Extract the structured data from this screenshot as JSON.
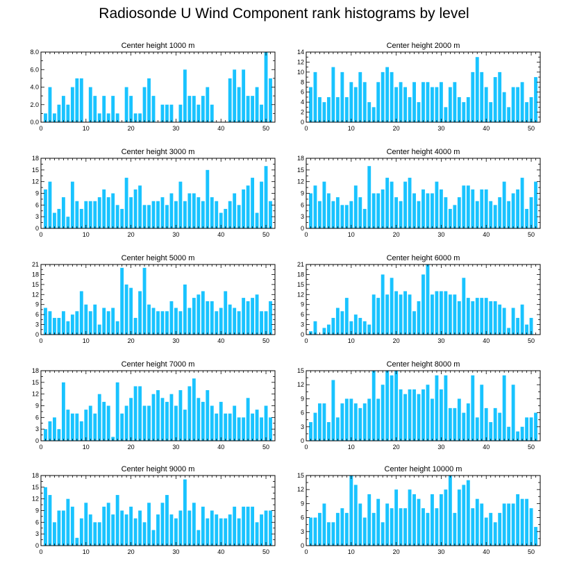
{
  "title": "Radiosonde U Wind Component rank histograms by level",
  "bar_color": "#19C3FF",
  "chart_data": [
    {
      "type": "bar",
      "title": "Center height 1000 m",
      "x": [
        1,
        2,
        3,
        4,
        5,
        6,
        7,
        8,
        9,
        10,
        11,
        12,
        13,
        14,
        15,
        16,
        17,
        18,
        19,
        20,
        21,
        22,
        23,
        24,
        25,
        26,
        27,
        28,
        29,
        30,
        31,
        32,
        33,
        34,
        35,
        36,
        37,
        38,
        39,
        40,
        41,
        42,
        43,
        44,
        45,
        46,
        47,
        48,
        49,
        50,
        51
      ],
      "values": [
        1,
        4,
        1,
        2,
        3,
        2,
        4,
        5,
        5,
        0,
        4,
        3,
        1,
        3,
        1,
        3,
        1,
        0,
        4,
        3,
        1,
        1,
        4,
        5,
        3,
        0,
        2,
        2,
        2,
        0,
        2,
        6,
        3,
        3,
        2,
        3,
        4,
        2,
        0,
        0,
        0,
        5,
        6,
        4,
        6,
        3,
        3,
        4,
        2,
        8,
        5
      ],
      "xlim": [
        0,
        52
      ],
      "ylim": [
        0,
        8
      ],
      "yticks": [
        "0.0",
        "2.0",
        "4.0",
        "6.0",
        "8.0"
      ],
      "xticks": [
        "0",
        "10",
        "20",
        "30",
        "40",
        "50"
      ]
    },
    {
      "type": "bar",
      "title": "Center height 2000 m",
      "x": [
        1,
        2,
        3,
        4,
        5,
        6,
        7,
        8,
        9,
        10,
        11,
        12,
        13,
        14,
        15,
        16,
        17,
        18,
        19,
        20,
        21,
        22,
        23,
        24,
        25,
        26,
        27,
        28,
        29,
        30,
        31,
        32,
        33,
        34,
        35,
        36,
        37,
        38,
        39,
        40,
        41,
        42,
        43,
        44,
        45,
        46,
        47,
        48,
        49,
        50,
        51
      ],
      "values": [
        7,
        10,
        5,
        4,
        5,
        11,
        5,
        10,
        5,
        8,
        7,
        10,
        8,
        4,
        3,
        8,
        10,
        11,
        10,
        7,
        8,
        7,
        5,
        8,
        4,
        8,
        8,
        7,
        7,
        8,
        3,
        7,
        8,
        5,
        4,
        5,
        10,
        13,
        10,
        7,
        4,
        9,
        10,
        6,
        3,
        7,
        7,
        8,
        4,
        5,
        9
      ],
      "xlim": [
        0,
        52
      ],
      "ylim": [
        0,
        14
      ],
      "yticks": [
        "0",
        "2",
        "4",
        "6",
        "8",
        "10",
        "12",
        "14"
      ],
      "xticks": [
        "0",
        "10",
        "20",
        "30",
        "40",
        "50"
      ]
    },
    {
      "type": "bar",
      "title": "Center height 3000 m",
      "x": [
        1,
        2,
        3,
        4,
        5,
        6,
        7,
        8,
        9,
        10,
        11,
        12,
        13,
        14,
        15,
        16,
        17,
        18,
        19,
        20,
        21,
        22,
        23,
        24,
        25,
        26,
        27,
        28,
        29,
        30,
        31,
        32,
        33,
        34,
        35,
        36,
        37,
        38,
        39,
        40,
        41,
        42,
        43,
        44,
        45,
        46,
        47,
        48,
        49,
        50,
        51
      ],
      "values": [
        10,
        12,
        4,
        5,
        8,
        3,
        12,
        7,
        5,
        7,
        7,
        7,
        8,
        10,
        8,
        9,
        6,
        5,
        13,
        8,
        10,
        11,
        6,
        6,
        7,
        7,
        8,
        6,
        9,
        7,
        12,
        7,
        9,
        9,
        8,
        7,
        15,
        8,
        7,
        4,
        5,
        7,
        9,
        6,
        10,
        11,
        13,
        4,
        12,
        16,
        7
      ],
      "xlim": [
        0,
        52
      ],
      "ylim": [
        0,
        18
      ],
      "yticks": [
        "0",
        "3",
        "6",
        "9",
        "12",
        "15",
        "18"
      ],
      "xticks": [
        "0",
        "10",
        "20",
        "30",
        "40",
        "50"
      ]
    },
    {
      "type": "bar",
      "title": "Center height 4000 m",
      "x": [
        1,
        2,
        3,
        4,
        5,
        6,
        7,
        8,
        9,
        10,
        11,
        12,
        13,
        14,
        15,
        16,
        17,
        18,
        19,
        20,
        21,
        22,
        23,
        24,
        25,
        26,
        27,
        28,
        29,
        30,
        31,
        32,
        33,
        34,
        35,
        36,
        37,
        38,
        39,
        40,
        41,
        42,
        43,
        44,
        45,
        46,
        47,
        48,
        49,
        50,
        51
      ],
      "values": [
        9,
        11,
        7,
        12,
        9,
        7,
        8,
        6,
        6,
        7,
        11,
        8,
        5,
        16,
        9,
        9,
        10,
        13,
        12,
        8,
        7,
        12,
        13,
        9,
        7,
        10,
        9,
        9,
        12,
        10,
        8,
        5,
        6,
        8,
        11,
        11,
        10,
        7,
        10,
        10,
        7,
        6,
        8,
        12,
        7,
        9,
        10,
        13,
        5,
        8,
        12
      ],
      "xlim": [
        0,
        52
      ],
      "ylim": [
        0,
        18
      ],
      "yticks": [
        "0",
        "3",
        "6",
        "9",
        "12",
        "15",
        "18"
      ],
      "xticks": [
        "0",
        "10",
        "20",
        "30",
        "40",
        "50"
      ]
    },
    {
      "type": "bar",
      "title": "Center height 5000 m",
      "x": [
        1,
        2,
        3,
        4,
        5,
        6,
        7,
        8,
        9,
        10,
        11,
        12,
        13,
        14,
        15,
        16,
        17,
        18,
        19,
        20,
        21,
        22,
        23,
        24,
        25,
        26,
        27,
        28,
        29,
        30,
        31,
        32,
        33,
        34,
        35,
        36,
        37,
        38,
        39,
        40,
        41,
        42,
        43,
        44,
        45,
        46,
        47,
        48,
        49,
        50,
        51
      ],
      "values": [
        8,
        7,
        5,
        5,
        7,
        4,
        6,
        7,
        13,
        9,
        7,
        9,
        3,
        8,
        7,
        8,
        4,
        20,
        15,
        14,
        5,
        13,
        20,
        9,
        8,
        7,
        7,
        7,
        10,
        8,
        7,
        15,
        8,
        11,
        12,
        13,
        10,
        10,
        7,
        8,
        13,
        9,
        8,
        7,
        11,
        10,
        11,
        12,
        7,
        7,
        10
      ],
      "xlim": [
        0,
        52
      ],
      "ylim": [
        0,
        21
      ],
      "yticks": [
        "0",
        "3",
        "6",
        "9",
        "12",
        "15",
        "18",
        "21"
      ],
      "xticks": [
        "0",
        "10",
        "20",
        "30",
        "40",
        "50"
      ]
    },
    {
      "type": "bar",
      "title": "Center height 6000 m",
      "x": [
        1,
        2,
        3,
        4,
        5,
        6,
        7,
        8,
        9,
        10,
        11,
        12,
        13,
        14,
        15,
        16,
        17,
        18,
        19,
        20,
        21,
        22,
        23,
        24,
        25,
        26,
        27,
        28,
        29,
        30,
        31,
        32,
        33,
        34,
        35,
        36,
        37,
        38,
        39,
        40,
        41,
        42,
        43,
        44,
        45,
        46,
        47,
        48,
        49,
        50,
        51
      ],
      "values": [
        1,
        4,
        0,
        2,
        3,
        5,
        8,
        7,
        11,
        4,
        6,
        5,
        4,
        3,
        12,
        11,
        18,
        12,
        17,
        13,
        12,
        13,
        12,
        7,
        10,
        18,
        21,
        12,
        13,
        13,
        13,
        12,
        12,
        10,
        17,
        11,
        10,
        11,
        11,
        11,
        10,
        10,
        9,
        8,
        2,
        8,
        5,
        9,
        3,
        5,
        0
      ],
      "xlim": [
        0,
        52
      ],
      "ylim": [
        0,
        21
      ],
      "yticks": [
        "0",
        "3",
        "6",
        "9",
        "12",
        "15",
        "18",
        "21"
      ],
      "xticks": [
        "0",
        "10",
        "20",
        "30",
        "40",
        "50"
      ]
    },
    {
      "type": "bar",
      "title": "Center height 7000 m",
      "x": [
        1,
        2,
        3,
        4,
        5,
        6,
        7,
        8,
        9,
        10,
        11,
        12,
        13,
        14,
        15,
        16,
        17,
        18,
        19,
        20,
        21,
        22,
        23,
        24,
        25,
        26,
        27,
        28,
        29,
        30,
        31,
        32,
        33,
        34,
        35,
        36,
        37,
        38,
        39,
        40,
        41,
        42,
        43,
        44,
        45,
        46,
        47,
        48,
        49,
        50,
        51
      ],
      "values": [
        3,
        5,
        6,
        3,
        15,
        8,
        7,
        7,
        5,
        8,
        9,
        7,
        12,
        10,
        9,
        1,
        15,
        7,
        9,
        11,
        14,
        14,
        9,
        9,
        12,
        13,
        11,
        10,
        12,
        9,
        13,
        8,
        14,
        16,
        11,
        10,
        13,
        9,
        7,
        10,
        7,
        7,
        9,
        6,
        6,
        11,
        7,
        8,
        6,
        9,
        6
      ],
      "xlim": [
        0,
        52
      ],
      "ylim": [
        0,
        18
      ],
      "yticks": [
        "0",
        "3",
        "6",
        "9",
        "12",
        "15",
        "18"
      ],
      "xticks": [
        "0",
        "10",
        "20",
        "30",
        "40",
        "50"
      ]
    },
    {
      "type": "bar",
      "title": "Center height 8000 m",
      "x": [
        1,
        2,
        3,
        4,
        5,
        6,
        7,
        8,
        9,
        10,
        11,
        12,
        13,
        14,
        15,
        16,
        17,
        18,
        19,
        20,
        21,
        22,
        23,
        24,
        25,
        26,
        27,
        28,
        29,
        30,
        31,
        32,
        33,
        34,
        35,
        36,
        37,
        38,
        39,
        40,
        41,
        42,
        43,
        44,
        45,
        46,
        47,
        48,
        49,
        50,
        51
      ],
      "values": [
        4,
        6,
        8,
        8,
        4,
        13,
        5,
        8,
        9,
        9,
        8,
        7,
        8,
        9,
        15,
        9,
        12,
        15,
        14,
        15,
        11,
        10,
        11,
        11,
        10,
        11,
        12,
        9,
        14,
        11,
        14,
        7,
        7,
        9,
        6,
        8,
        14,
        5,
        12,
        7,
        4,
        7,
        6,
        14,
        3,
        12,
        2,
        3,
        5,
        5,
        6
      ],
      "xlim": [
        0,
        52
      ],
      "ylim": [
        0,
        15
      ],
      "yticks": [
        "0",
        "3",
        "6",
        "9",
        "12",
        "15"
      ],
      "xticks": [
        "0",
        "10",
        "20",
        "30",
        "40",
        "50"
      ]
    },
    {
      "type": "bar",
      "title": "Center height 9000 m",
      "x": [
        1,
        2,
        3,
        4,
        5,
        6,
        7,
        8,
        9,
        10,
        11,
        12,
        13,
        14,
        15,
        16,
        17,
        18,
        19,
        20,
        21,
        22,
        23,
        24,
        25,
        26,
        27,
        28,
        29,
        30,
        31,
        32,
        33,
        34,
        35,
        36,
        37,
        38,
        39,
        40,
        41,
        42,
        43,
        44,
        45,
        46,
        47,
        48,
        49,
        50,
        51
      ],
      "values": [
        15,
        13,
        6,
        9,
        9,
        12,
        10,
        2,
        7,
        11,
        8,
        6,
        6,
        10,
        11,
        8,
        13,
        9,
        8,
        10,
        7,
        9,
        6,
        11,
        4,
        8,
        11,
        13,
        8,
        7,
        9,
        17,
        9,
        11,
        4,
        10,
        7,
        9,
        8,
        7,
        7,
        8,
        10,
        7,
        10,
        10,
        10,
        6,
        8,
        9,
        9
      ],
      "xlim": [
        0,
        52
      ],
      "ylim": [
        0,
        18
      ],
      "yticks": [
        "0",
        "3",
        "6",
        "9",
        "12",
        "15",
        "18"
      ],
      "xticks": [
        "0",
        "10",
        "20",
        "30",
        "40",
        "50"
      ]
    },
    {
      "type": "bar",
      "title": "Center height 10000 m",
      "x": [
        1,
        2,
        3,
        4,
        5,
        6,
        7,
        8,
        9,
        10,
        11,
        12,
        13,
        14,
        15,
        16,
        17,
        18,
        19,
        20,
        21,
        22,
        23,
        24,
        25,
        26,
        27,
        28,
        29,
        30,
        31,
        32,
        33,
        34,
        35,
        36,
        37,
        38,
        39,
        40,
        41,
        42,
        43,
        44,
        45,
        46,
        47,
        48,
        49,
        50,
        51
      ],
      "values": [
        6,
        6,
        7,
        9,
        5,
        5,
        7,
        8,
        7,
        15,
        13,
        9,
        6,
        11,
        7,
        10,
        5,
        9,
        8,
        12,
        8,
        8,
        12,
        11,
        10,
        8,
        7,
        11,
        8,
        11,
        12,
        15,
        7,
        12,
        13,
        14,
        8,
        10,
        9,
        6,
        7,
        5,
        7,
        9,
        9,
        9,
        11,
        10,
        10,
        8,
        4
      ],
      "xlim": [
        0,
        52
      ],
      "ylim": [
        0,
        15
      ],
      "yticks": [
        "0",
        "3",
        "6",
        "9",
        "12",
        "15"
      ],
      "xticks": [
        "0",
        "10",
        "20",
        "30",
        "40",
        "50"
      ]
    }
  ]
}
